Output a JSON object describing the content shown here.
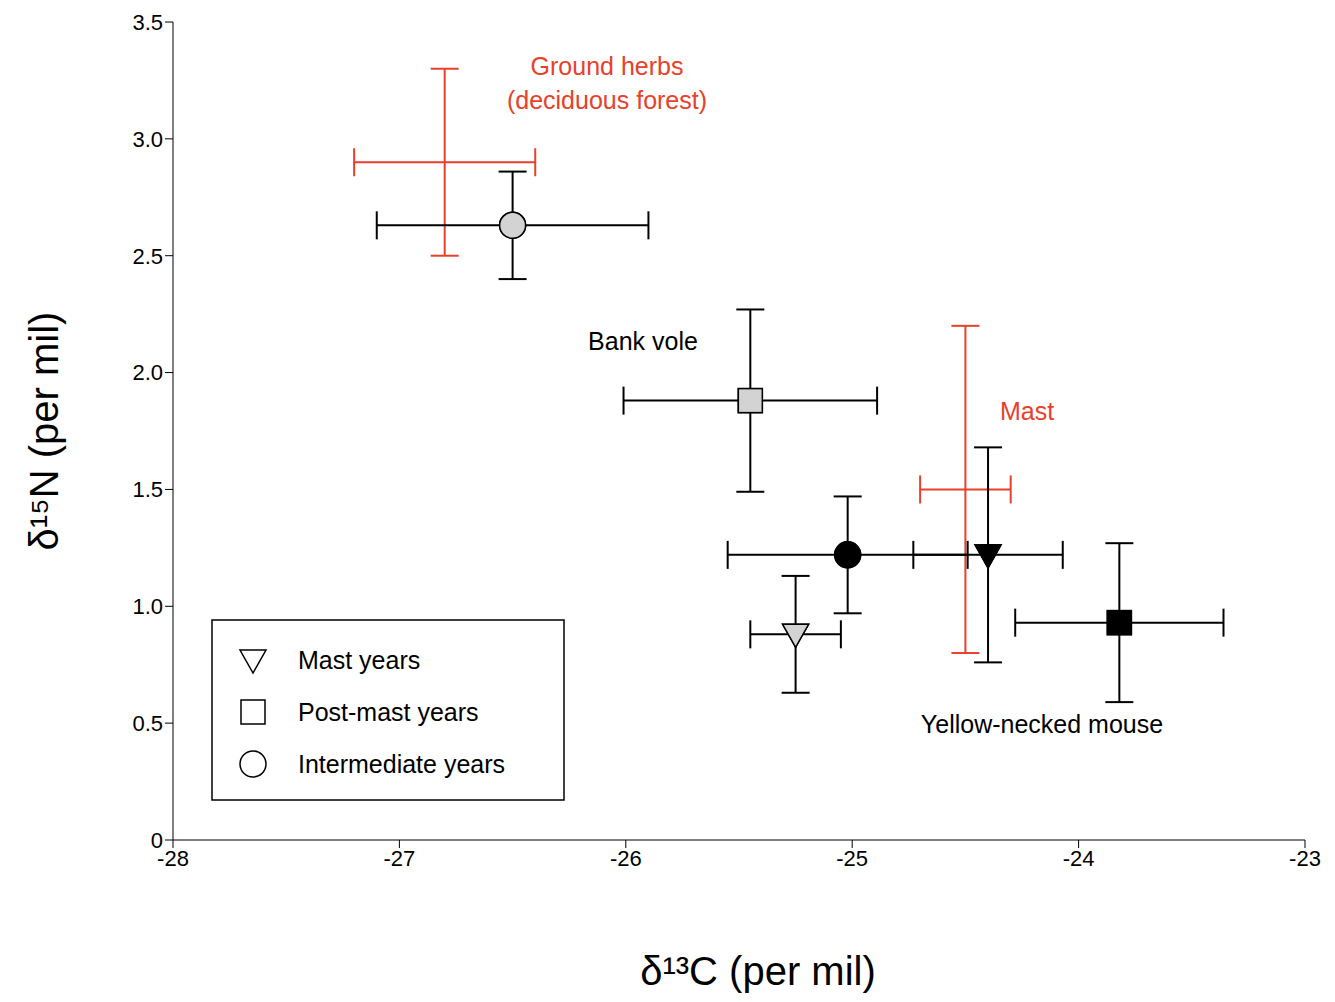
{
  "chart_data": {
    "type": "scatter",
    "x_label": "δ¹³C (per mil)",
    "y_label": "δ¹⁵N (per mil)",
    "xlim": [
      -28,
      -23
    ],
    "xticks": [
      -28,
      -27,
      -26,
      -25,
      -24,
      -23
    ],
    "ylim": [
      0,
      3.5
    ],
    "yticks": [
      0,
      0.5,
      {
        "value": 1,
        "label": "1.0"
      },
      1.5,
      {
        "value": 2,
        "label": "2.0"
      },
      2.5,
      {
        "value": 3,
        "label": "3.0"
      },
      3.5
    ],
    "grid": false,
    "legend": "lower left",
    "legend_items": [
      {
        "label": "Mast years",
        "marker": "triangle"
      },
      {
        "label": "Post-mast years",
        "marker": "square"
      },
      {
        "label": "Intermediate years",
        "marker": "circle"
      }
    ],
    "series": [
      {
        "name": "Ground herbs (deciduous forest)",
        "color": "#e8402a",
        "marker": "none",
        "x": [
          -26.8
        ],
        "values": [
          2.9
        ],
        "x_error": [
          0.4
        ],
        "y_error": [
          0.4
        ]
      },
      {
        "name": "Mast",
        "color": "#e8402a",
        "marker": "none",
        "x": [
          -24.5
        ],
        "values": [
          1.5
        ],
        "x_error": [
          0.2
        ],
        "y_error": [
          0.7
        ]
      },
      {
        "name": "Bank vole",
        "color": "#d3d3d3",
        "marker": "legend",
        "periods": [
          "Intermediate years",
          "Post-mast years",
          "Mast years"
        ],
        "x": [
          -26.5,
          -25.45,
          -25.25
        ],
        "values": [
          2.63,
          1.88,
          0.88
        ],
        "x_error": [
          0.6,
          0.56,
          0.2
        ],
        "y_error": [
          0.23,
          0.39,
          0.25
        ]
      },
      {
        "name": "Yellow-necked mouse",
        "color": "#000000",
        "marker": "legend",
        "periods": [
          "Intermediate years",
          "Mast years",
          "Post-mast years"
        ],
        "x": [
          -25.02,
          -24.4,
          -23.82
        ],
        "values": [
          1.22,
          1.22,
          0.93
        ],
        "x_error": [
          0.53,
          0.33,
          0.46
        ],
        "y_error": [
          0.25,
          0.46,
          0.34
        ]
      }
    ]
  }
}
